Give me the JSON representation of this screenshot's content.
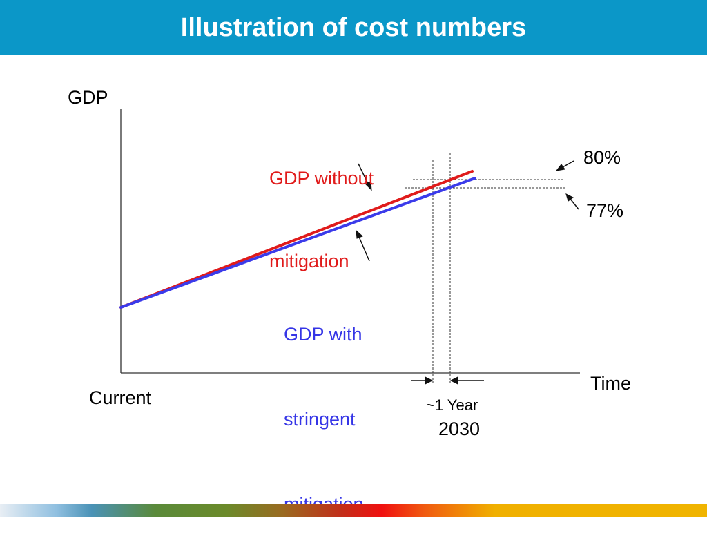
{
  "header": {
    "title": "Illustration of cost numbers"
  },
  "chart_data": {
    "type": "line",
    "ylabel": "GDP",
    "xlabel": "Time",
    "x_start_label": "Current",
    "series": [
      {
        "name": "GDP without mitigation",
        "color": "#e01b1b",
        "start": 0,
        "end": 80
      },
      {
        "name": "GDP with stringent mitigation",
        "color": "#3b3bea",
        "start": 0,
        "end": 77
      }
    ],
    "annotations": {
      "level_high": "80%",
      "level_low": "77%",
      "delay": "~1 Year",
      "year": "2030"
    }
  },
  "labels": {
    "red_line": [
      "GDP without",
      "mitigation"
    ],
    "blue_line": [
      "GDP with",
      "stringent",
      "mitigation"
    ]
  }
}
